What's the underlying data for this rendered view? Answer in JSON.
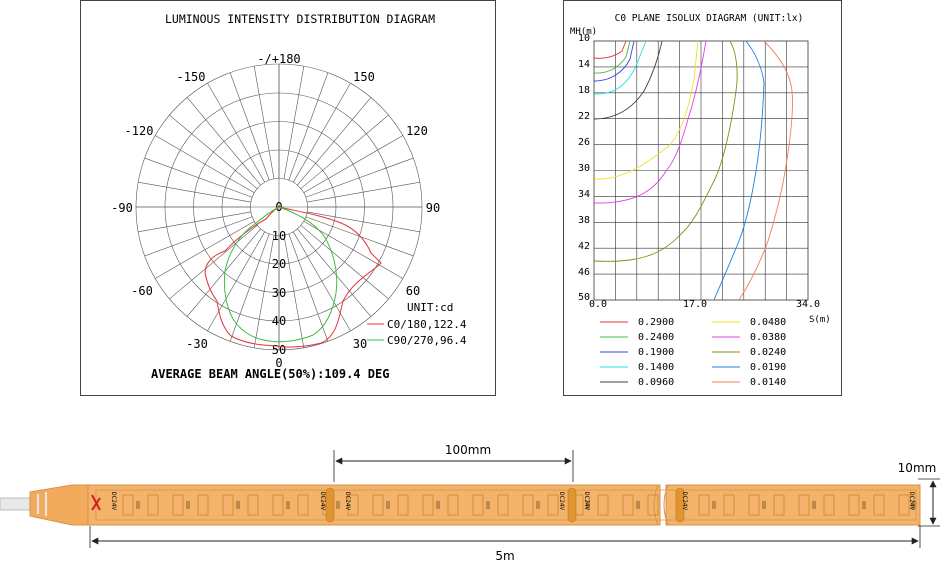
{
  "polar": {
    "title": "LUMINOUS INTENSITY DISTRIBUTION DIAGRAM",
    "angle_labels": {
      "top": "-/+180",
      "n150": "-150",
      "p150": "150",
      "n120": "-120",
      "p120": "120",
      "n90": "-90",
      "p90": "90",
      "n60": "-60",
      "p60": "60",
      "n30": "-30",
      "p30": "30",
      "bottom": "0"
    },
    "radial_labels": [
      "0",
      "10",
      "20",
      "30",
      "40",
      "50"
    ],
    "unit": "UNIT:cd",
    "legend": [
      {
        "label": "C0/180,122.4",
        "color": "#e8313a"
      },
      {
        "label": "C90/270,96.4",
        "color": "#3fbf3f"
      }
    ],
    "beam_angle": "AVERAGE BEAM ANGLE(50%):109.4 DEG"
  },
  "isolux": {
    "title": "C0 PLANE ISOLUX DIAGRAM (UNIT:lx)",
    "y_title": "MH(m)",
    "y_ticks": [
      "10",
      "14",
      "18",
      "22",
      "26",
      "30",
      "34",
      "38",
      "42",
      "46",
      "50"
    ],
    "x_ticks": [
      "0.0",
      "17.0",
      "34.0"
    ],
    "x_title": "S(m)",
    "legend": [
      {
        "label": "0.2900",
        "color": "#e8313a"
      },
      {
        "label": "0.0480",
        "color": "#f0e020"
      },
      {
        "label": "0.2400",
        "color": "#3fbf3f"
      },
      {
        "label": "0.0380",
        "color": "#e040e0"
      },
      {
        "label": "0.1900",
        "color": "#4040e0"
      },
      {
        "label": "0.0240",
        "color": "#8a8a1a"
      },
      {
        "label": "0.1400",
        "color": "#20e0e0"
      },
      {
        "label": "0.0190",
        "color": "#2080e0"
      },
      {
        "label": "0.0960",
        "color": "#404040"
      },
      {
        "label": "0.0140",
        "color": "#f08050"
      }
    ]
  },
  "strip": {
    "segment_dim": "100mm",
    "height_dim": "10mm",
    "length_dim": "5m",
    "voltage_mark": "DC24V",
    "colors": {
      "strip": "#f4b36b",
      "strip_border": "#d9914a",
      "led": "#c8882e"
    }
  }
}
